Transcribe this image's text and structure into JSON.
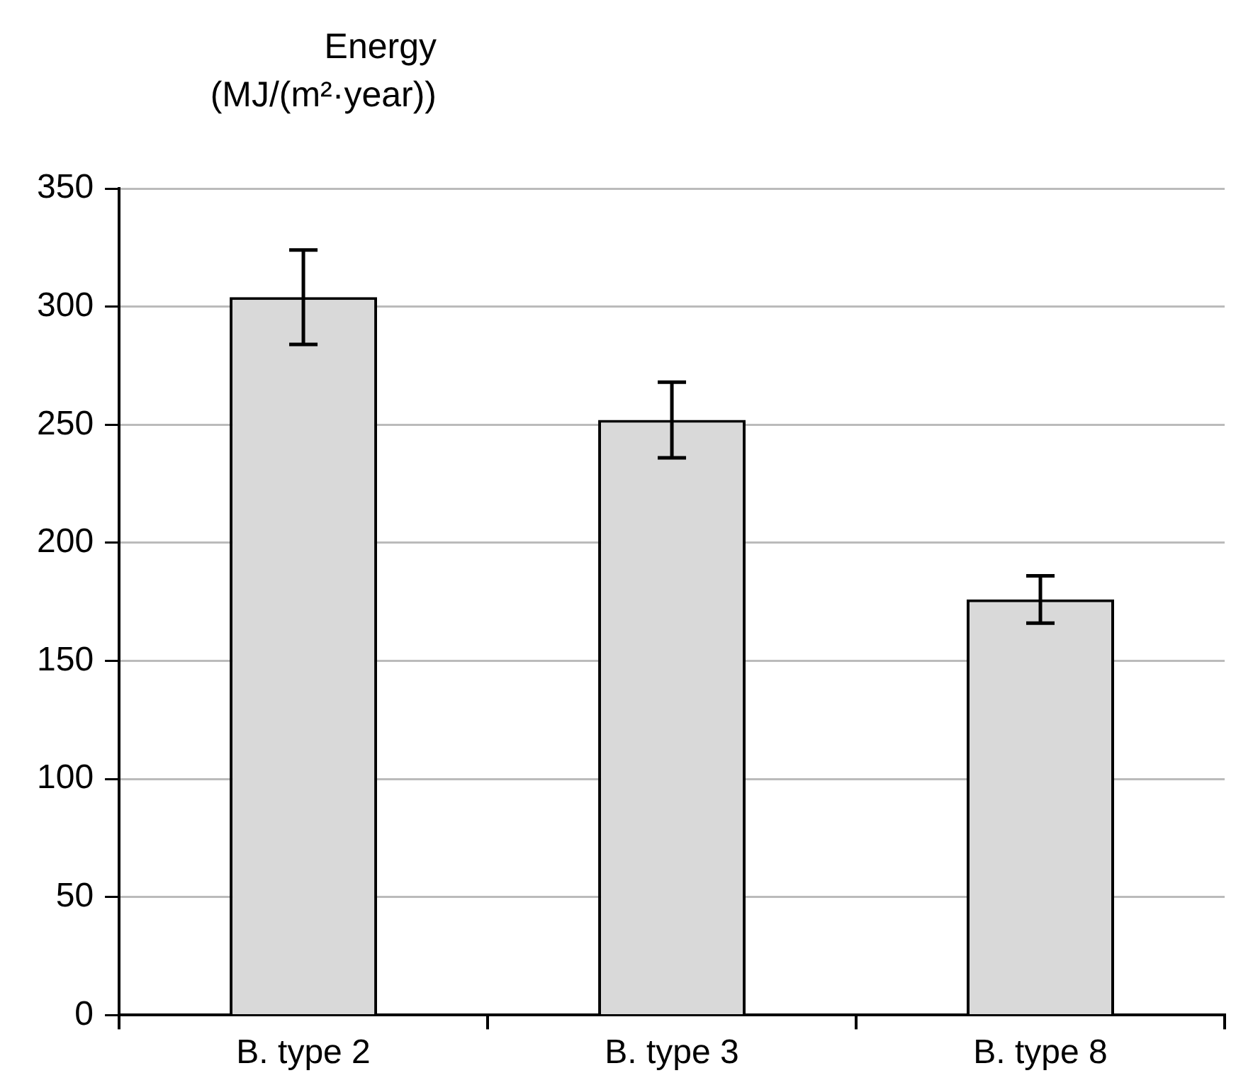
{
  "chart_data": {
    "type": "bar",
    "ylabel": "Energy (MJ/(m²·year))",
    "categories": [
      "B. type 2",
      "B. type 3",
      "B. type 8"
    ],
    "values": [
      304,
      252,
      176
    ],
    "errors": [
      20,
      16,
      10
    ],
    "color": "#d9d9d9",
    "ylim": [
      0,
      350
    ],
    "yticks": [
      0,
      50,
      100,
      150,
      200,
      250,
      300,
      350
    ],
    "grid": "y",
    "legend": false
  }
}
